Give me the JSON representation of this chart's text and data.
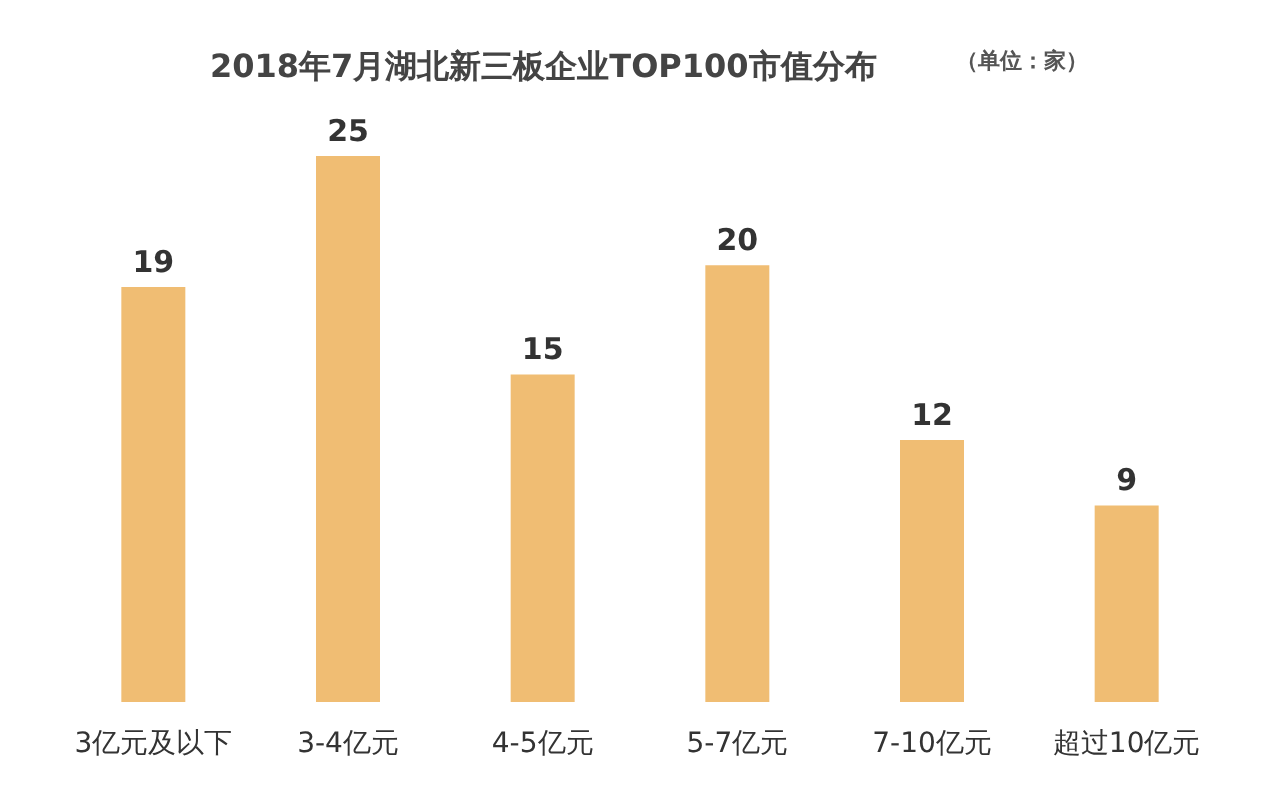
{
  "chart_data": {
    "type": "bar",
    "title": "2018年7月湖北新三板企业TOP100市值分布",
    "annotations": [
      "（单位：家）"
    ],
    "categories": [
      "3亿元及以下",
      "3-4亿元",
      "4-5亿元",
      "5-7亿元",
      "7-10亿元",
      "超过10亿元"
    ],
    "values": [
      19,
      25,
      15,
      20,
      12,
      9
    ],
    "color": "#f0bd73",
    "data_labels": true
  }
}
